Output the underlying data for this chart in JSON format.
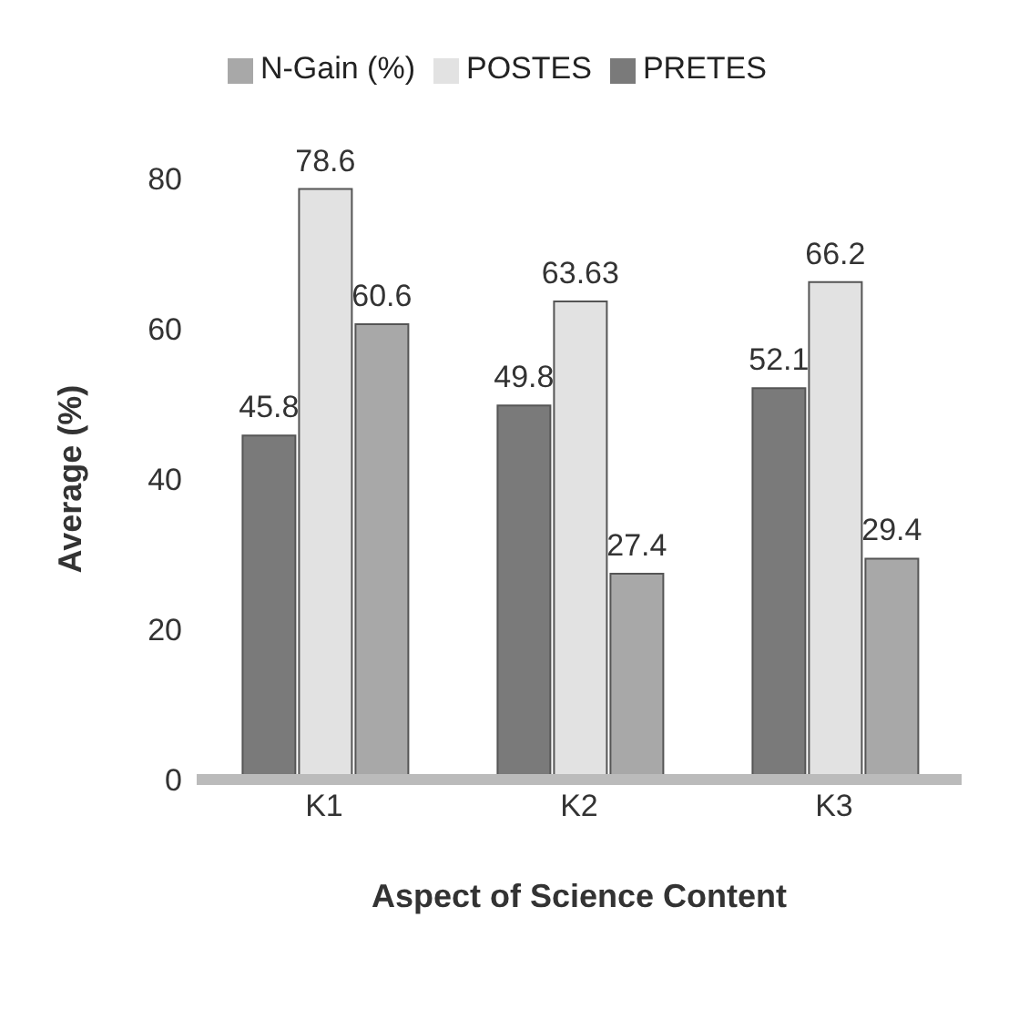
{
  "chart_data": {
    "type": "bar",
    "xlabel": "Aspect of Science Content",
    "ylabel": "Average (%)",
    "categories": [
      "K1",
      "K2",
      "K3"
    ],
    "series": [
      {
        "name": "PRETES",
        "color": "#7a7a7a",
        "values": [
          45.8,
          49.8,
          52.1
        ],
        "value_labels": [
          "45.8",
          "49.8",
          "52.1"
        ]
      },
      {
        "name": "POSTES",
        "color": "#e2e2e2",
        "values": [
          78.6,
          63.63,
          66.2
        ],
        "value_labels": [
          "78.6",
          "63.63",
          "66.2"
        ]
      },
      {
        "name": "N-Gain (%)",
        "color": "#a8a8a8",
        "values": [
          60.6,
          27.4,
          29.4
        ],
        "value_labels": [
          "60.6",
          "27.4",
          "29.4"
        ]
      }
    ],
    "ylim": [
      0,
      80
    ],
    "yticks": [
      0,
      20,
      40,
      60,
      80
    ],
    "grid": false,
    "legend": "top"
  }
}
